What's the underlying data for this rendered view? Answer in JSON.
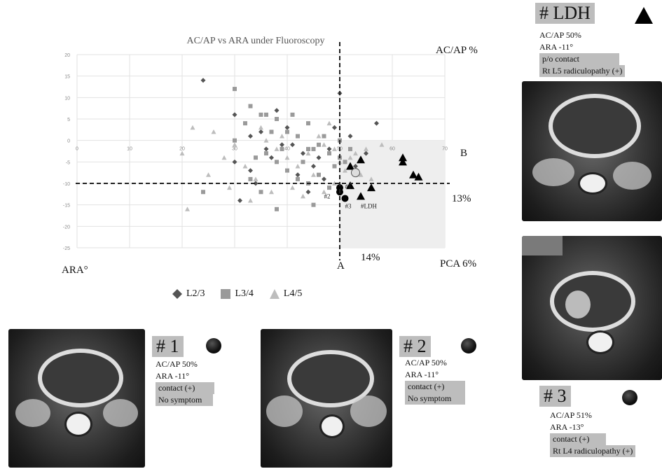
{
  "chart_data": {
    "type": "scatter",
    "title": "AC/AP vs ARA under Fluoroscopy",
    "xlim": [
      0,
      70
    ],
    "ylim": [
      -25,
      20
    ],
    "x_ticks": [
      0,
      10,
      20,
      30,
      40,
      50,
      60,
      70
    ],
    "y_ticks": [
      20,
      15,
      10,
      5,
      0,
      -5,
      -10,
      -15,
      -20,
      -25
    ],
    "grid": true,
    "legend_position": "bottom",
    "reference_lines": {
      "x": 50,
      "y": -10
    },
    "shaded_region": {
      "x": [
        50,
        70
      ],
      "y": [
        -25,
        0
      ]
    },
    "series": [
      {
        "name": "L2/3",
        "marker": "diamond",
        "color": "#555555",
        "points": [
          [
            24,
            14
          ],
          [
            30,
            6
          ],
          [
            33,
            1
          ],
          [
            35,
            2
          ],
          [
            38,
            7
          ],
          [
            39,
            -1
          ],
          [
            41,
            -1
          ],
          [
            43,
            -3
          ],
          [
            45,
            -6
          ],
          [
            46,
            -4
          ],
          [
            48,
            -2
          ],
          [
            49,
            3
          ],
          [
            50,
            11
          ],
          [
            52,
            1
          ],
          [
            55,
            -3
          ],
          [
            57,
            4
          ],
          [
            30,
            -5
          ],
          [
            33,
            -7
          ],
          [
            37,
            -4
          ],
          [
            42,
            -8
          ],
          [
            44,
            -12
          ],
          [
            31,
            -14
          ],
          [
            47,
            -9
          ],
          [
            53,
            -6
          ],
          [
            40,
            3
          ],
          [
            36,
            -2
          ],
          [
            34,
            -10
          ]
        ]
      },
      {
        "name": "L3/4",
        "marker": "square",
        "color": "#9a9a9a",
        "points": [
          [
            30,
            12
          ],
          [
            33,
            8
          ],
          [
            36,
            6
          ],
          [
            38,
            5
          ],
          [
            40,
            2
          ],
          [
            42,
            1
          ],
          [
            44,
            4
          ],
          [
            45,
            -2
          ],
          [
            46,
            -1
          ],
          [
            48,
            -3
          ],
          [
            49,
            -6
          ],
          [
            50,
            -4
          ],
          [
            51,
            -5
          ],
          [
            36,
            -3
          ],
          [
            38,
            -5
          ],
          [
            40,
            -7
          ],
          [
            42,
            -9
          ],
          [
            44,
            -10
          ],
          [
            33,
            -9
          ],
          [
            35,
            -12
          ],
          [
            38,
            -16
          ],
          [
            24,
            -12
          ],
          [
            30,
            0
          ],
          [
            32,
            4
          ],
          [
            41,
            6
          ],
          [
            43,
            -5
          ],
          [
            47,
            1
          ],
          [
            37,
            2
          ],
          [
            39,
            -2
          ],
          [
            34,
            -4
          ],
          [
            46,
            -8
          ],
          [
            48,
            -11
          ],
          [
            45,
            -15
          ],
          [
            50,
            0
          ],
          [
            52,
            -2
          ],
          [
            35,
            6
          ],
          [
            44,
            -2
          ]
        ]
      },
      {
        "name": "L4/5",
        "marker": "triangle",
        "color": "#bdbdbd",
        "points": [
          [
            20,
            -3
          ],
          [
            21,
            -16
          ],
          [
            22,
            3
          ],
          [
            25,
            -8
          ],
          [
            28,
            -4
          ],
          [
            30,
            -1
          ],
          [
            32,
            -6
          ],
          [
            34,
            -9
          ],
          [
            36,
            0
          ],
          [
            38,
            -2
          ],
          [
            40,
            -4
          ],
          [
            42,
            -6
          ],
          [
            44,
            -3
          ],
          [
            45,
            -8
          ],
          [
            46,
            1
          ],
          [
            47,
            -1
          ],
          [
            48,
            4
          ],
          [
            49,
            -2
          ],
          [
            50,
            -5
          ],
          [
            51,
            -7
          ],
          [
            52,
            -4
          ],
          [
            53,
            -3
          ],
          [
            54,
            -8
          ],
          [
            55,
            -2
          ],
          [
            26,
            2
          ],
          [
            29,
            -11
          ],
          [
            33,
            -14
          ],
          [
            37,
            -12
          ],
          [
            41,
            -11
          ],
          [
            43,
            -13
          ],
          [
            47,
            -12
          ],
          [
            49,
            -10
          ],
          [
            56,
            -9
          ],
          [
            58,
            -1
          ],
          [
            35,
            3
          ],
          [
            39,
            1
          ]
        ]
      },
      {
        "name": "highlight",
        "marker": "triangle",
        "color": "#000000",
        "points": [
          [
            52,
            -6
          ],
          [
            54,
            -4.5
          ],
          [
            52,
            -10.5
          ],
          [
            56,
            -11
          ],
          [
            62,
            -4
          ],
          [
            62,
            -5
          ],
          [
            64,
            -8
          ],
          [
            65,
            -8.5
          ],
          [
            54,
            -13
          ]
        ]
      },
      {
        "name": "cases",
        "marker": "circle",
        "color": "#000000",
        "points": [
          [
            50,
            -11
          ],
          [
            50,
            -12
          ],
          [
            51,
            -13.5
          ]
        ]
      },
      {
        "name": "open",
        "marker": "open-circle",
        "color": "#aaaaaa",
        "points": [
          [
            53,
            -7.5
          ]
        ]
      }
    ],
    "annotations": [
      "#1",
      "#2",
      "#3",
      "#LDH"
    ]
  },
  "labels": {
    "acap": "AC/AP %",
    "b": "B",
    "pct13": "13%",
    "pct14": "14%",
    "pca": "PCA 6%",
    "a": "A",
    "ara": "ARA°"
  },
  "legend": [
    "L2/3",
    "L3/4",
    "L4/5"
  ],
  "cases": {
    "c1": {
      "title": "# 1",
      "lines": [
        "AC/AP 50%",
        "ARA -11°",
        "contact (+)",
        "No symptom"
      ]
    },
    "c2": {
      "title": "# 2",
      "lines": [
        "AC/AP 50%",
        "ARA -11°",
        "contact (+)",
        "No symptom"
      ]
    },
    "c3": {
      "title": "# 3",
      "lines": [
        "AC/AP 51%",
        "ARA -13°",
        "contact (+)",
        "Rt L4 radiculopathy (+)"
      ]
    },
    "ldh": {
      "title": "# LDH",
      "lines": [
        "AC/AP 50%",
        "ARA -11°",
        "p/o contact",
        "Rt L5 radiculopathy (+)"
      ]
    }
  },
  "colors": {
    "shade": "#eeeeee",
    "highlight": "#bdbdbd",
    "dark": "#000000"
  }
}
